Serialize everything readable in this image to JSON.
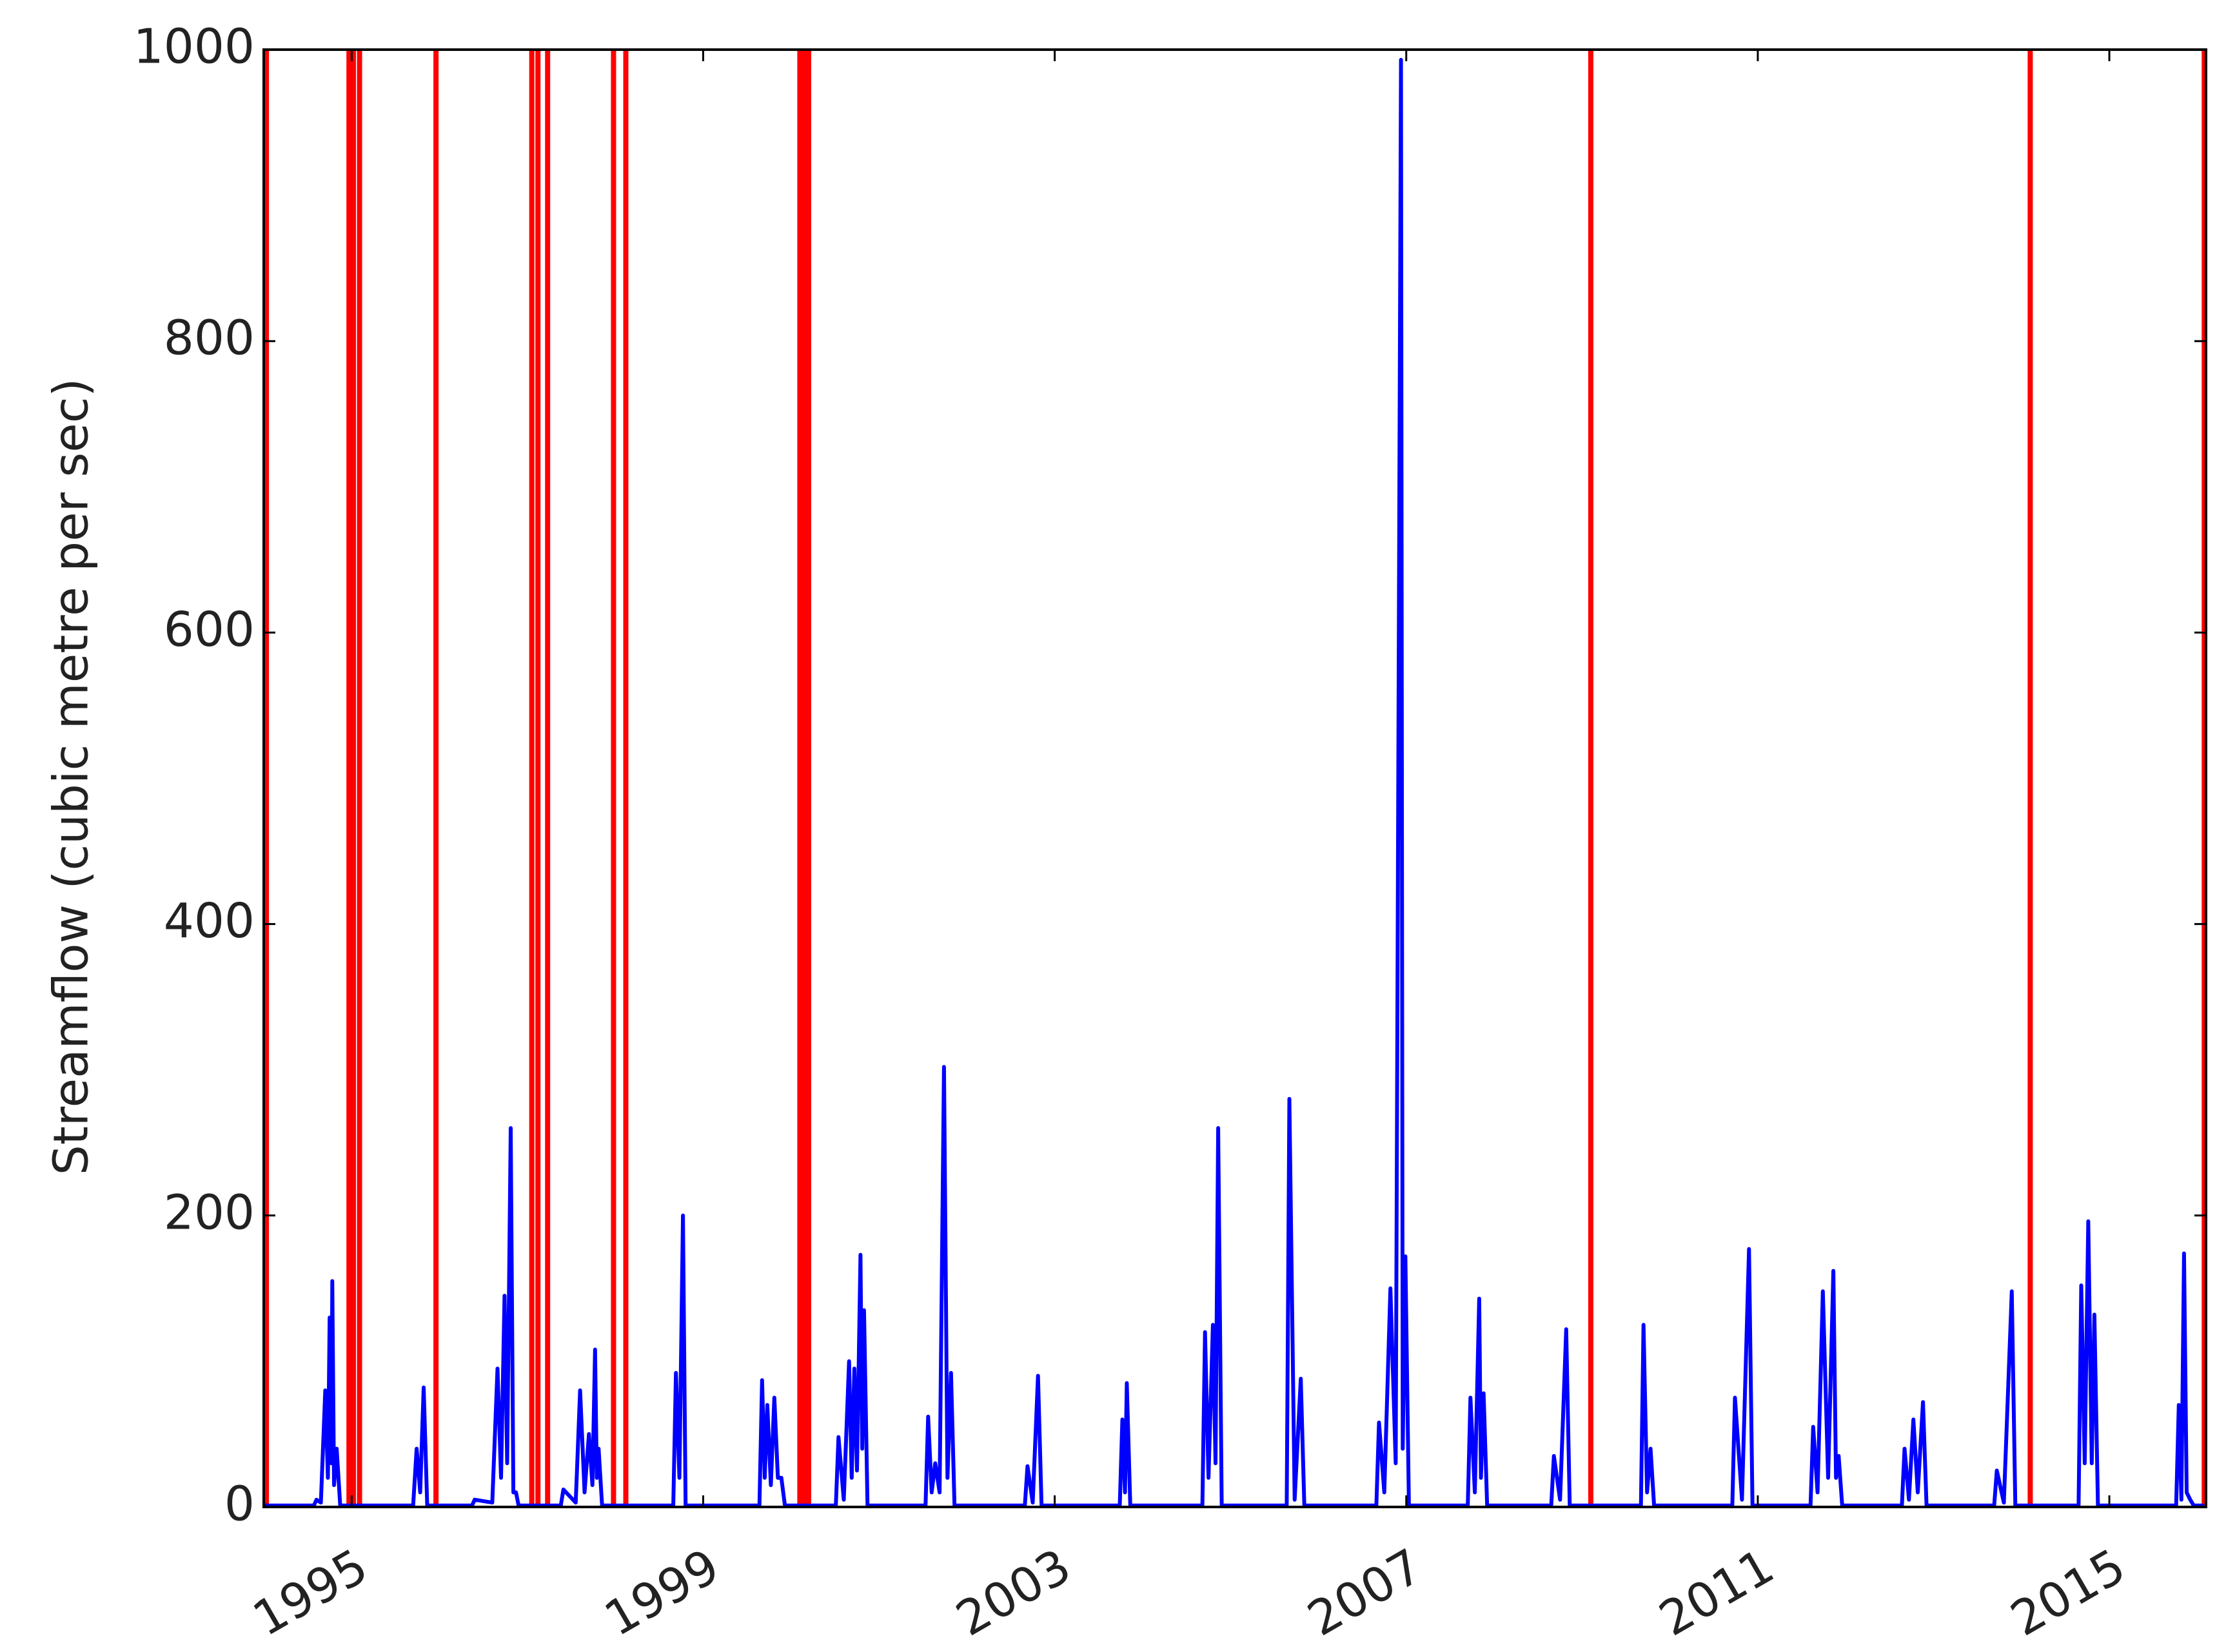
{
  "chart_data": {
    "type": "line",
    "y_label": "Streamflow (cubic metre per sec)",
    "xlim": [
      1994.0,
      2016.1
    ],
    "xticks": [
      1995,
      1999,
      2003,
      2007,
      2011,
      2015
    ],
    "ylim": [
      0,
      1000
    ],
    "yticks": [
      0,
      200,
      400,
      600,
      800,
      1000
    ],
    "grid": false,
    "vlines": {
      "color": "#ff0000",
      "x": [
        1994.03,
        1994.97,
        1995.02,
        1995.09,
        1995.96,
        1997.05,
        1997.12,
        1997.23,
        1997.98,
        1998.12,
        2000.1,
        2000.15,
        2000.2,
        2009.1,
        2014.1,
        2016.08
      ]
    },
    "series": [
      {
        "color": "#0000ff",
        "x": [
          1994.0,
          1994.57,
          1994.6,
          1994.65,
          1994.7,
          1994.73,
          1994.75,
          1994.77,
          1994.78,
          1994.8,
          1994.83,
          1994.87,
          1995.7,
          1995.74,
          1995.78,
          1995.82,
          1995.86,
          1996.37,
          1996.4,
          1996.6,
          1996.66,
          1996.7,
          1996.74,
          1996.77,
          1996.81,
          1996.84,
          1996.87,
          1996.9,
          1997.38,
          1997.41,
          1997.55,
          1997.6,
          1997.65,
          1997.7,
          1997.74,
          1997.77,
          1997.79,
          1997.81,
          1997.85,
          1998.66,
          1998.69,
          1998.73,
          1998.77,
          1998.8,
          1999.64,
          1999.67,
          1999.7,
          1999.73,
          1999.77,
          1999.81,
          1999.85,
          1999.89,
          1999.93,
          2000.51,
          2000.54,
          2000.6,
          2000.66,
          2000.69,
          2000.72,
          2000.75,
          2000.79,
          2000.81,
          2000.83,
          2000.87,
          2001.53,
          2001.56,
          2001.6,
          2001.64,
          2001.69,
          2001.74,
          2001.78,
          2001.82,
          2001.86,
          2002.66,
          2002.69,
          2002.75,
          2002.81,
          2002.85,
          2003.74,
          2003.77,
          2003.8,
          2003.82,
          2003.86,
          2004.68,
          2004.71,
          2004.75,
          2004.8,
          2004.83,
          2004.86,
          2004.9,
          2005.64,
          2005.67,
          2005.73,
          2005.8,
          2005.84,
          2006.66,
          2006.69,
          2006.75,
          2006.82,
          2006.88,
          2006.94,
          2006.96,
          2006.99,
          2007.03,
          2007.7,
          2007.73,
          2007.78,
          2007.83,
          2007.85,
          2007.88,
          2007.92,
          2008.65,
          2008.68,
          2008.75,
          2008.82,
          2008.86,
          2009.67,
          2009.7,
          2009.74,
          2009.78,
          2009.82,
          2010.71,
          2010.74,
          2010.82,
          2010.9,
          2010.94,
          2011.6,
          2011.63,
          2011.68,
          2011.74,
          2011.8,
          2011.86,
          2011.89,
          2011.92,
          2011.96,
          2012.64,
          2012.67,
          2012.72,
          2012.77,
          2012.82,
          2012.88,
          2012.92,
          2013.69,
          2013.72,
          2013.8,
          2013.89,
          2013.93,
          2014.65,
          2014.68,
          2014.72,
          2014.76,
          2014.8,
          2014.83,
          2014.87,
          2015.76,
          2015.79,
          2015.82,
          2015.85,
          2015.88,
          2015.92,
          2015.96,
          2016.08
        ],
        "values": [
          1,
          1,
          5,
          3,
          80,
          20,
          130,
          30,
          155,
          15,
          40,
          1,
          1,
          40,
          10,
          82,
          1,
          1,
          5,
          3,
          95,
          20,
          145,
          30,
          260,
          10,
          10,
          1,
          1,
          12,
          3,
          80,
          10,
          50,
          15,
          108,
          20,
          40,
          1,
          1,
          92,
          20,
          200,
          1,
          1,
          87,
          20,
          70,
          15,
          75,
          20,
          20,
          1,
          1,
          48,
          5,
          100,
          20,
          95,
          25,
          173,
          40,
          135,
          1,
          1,
          62,
          10,
          30,
          10,
          302,
          20,
          92,
          1,
          1,
          28,
          3,
          90,
          1,
          1,
          60,
          10,
          85,
          1,
          1,
          120,
          20,
          125,
          30,
          260,
          1,
          1,
          280,
          5,
          88,
          1,
          1,
          58,
          10,
          150,
          30,
          993,
          40,
          172,
          1,
          1,
          75,
          10,
          143,
          20,
          78,
          1,
          1,
          35,
          5,
          122,
          1,
          1,
          125,
          10,
          40,
          1,
          1,
          75,
          5,
          177,
          1,
          1,
          55,
          10,
          148,
          20,
          162,
          20,
          35,
          1,
          1,
          40,
          5,
          60,
          10,
          72,
          1,
          1,
          25,
          3,
          148,
          1,
          1,
          152,
          30,
          196,
          30,
          132,
          1,
          1,
          70,
          5,
          174,
          10,
          5,
          1,
          1
        ]
      }
    ]
  }
}
